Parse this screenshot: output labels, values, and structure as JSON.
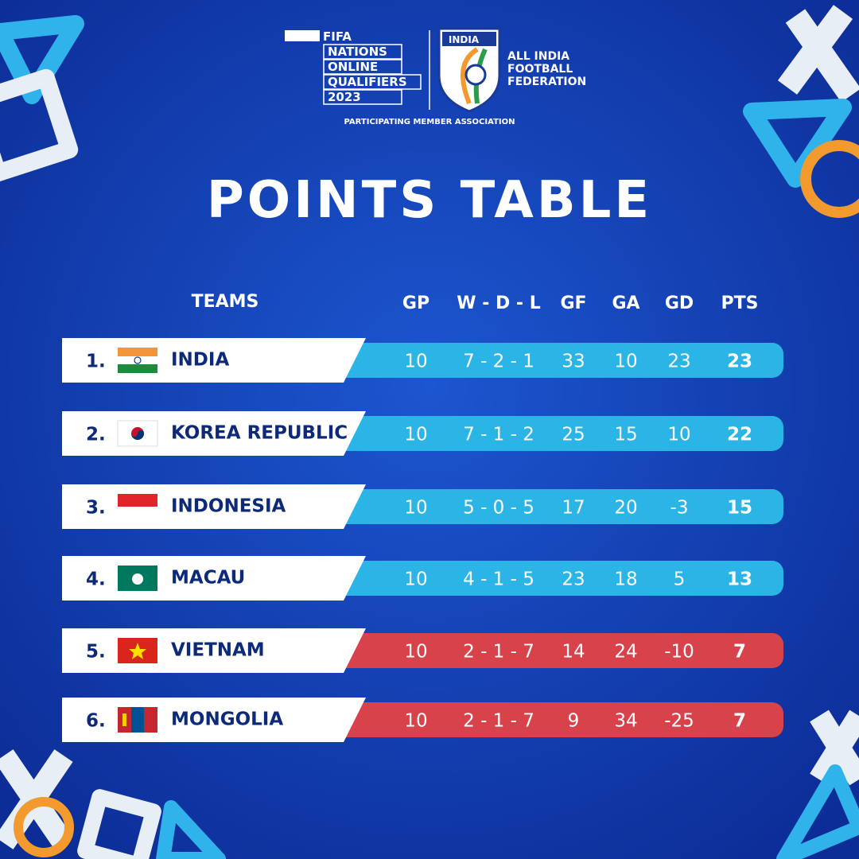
{
  "header": {
    "fifa": "FIFA",
    "event_lines": [
      "NATIONS",
      "ONLINE",
      "QUALIFIERS",
      "2023"
    ],
    "member": "PARTICIPATING MEMBER ASSOCIATION",
    "crest": "INDIA",
    "federation_lines": [
      "ALL INDIA",
      "FOOTBALL",
      "FEDERATION"
    ]
  },
  "title": "POINTS TABLE",
  "table": {
    "columns": [
      "TEAMS",
      "GP",
      "W - D - L",
      "GF",
      "GA",
      "GD",
      "PTS"
    ],
    "rows": [
      {
        "rank": "1.",
        "team": "INDIA",
        "gp": 10,
        "wdl": "7 - 2 - 1",
        "gf": 33,
        "ga": 10,
        "gd": 23,
        "pts": 23,
        "color": "#2bb5e6"
      },
      {
        "rank": "2.",
        "team": "KOREA REPUBLIC",
        "gp": 10,
        "wdl": "7 - 1 - 2",
        "gf": 25,
        "ga": 15,
        "gd": 10,
        "pts": 22,
        "color": "#2bb5e6"
      },
      {
        "rank": "3.",
        "team": "INDONESIA",
        "gp": 10,
        "wdl": "5 - 0 - 5",
        "gf": 17,
        "ga": 20,
        "gd": -3,
        "pts": 15,
        "color": "#2bb5e6"
      },
      {
        "rank": "4.",
        "team": "MACAU",
        "gp": 10,
        "wdl": "4 - 1 - 5",
        "gf": 23,
        "ga": 18,
        "gd": 5,
        "pts": 13,
        "color": "#2bb5e6"
      },
      {
        "rank": "5.",
        "team": "VIETNAM",
        "gp": 10,
        "wdl": "2 - 1 - 7",
        "gf": 14,
        "ga": 24,
        "gd": -10,
        "pts": 7,
        "color": "#d8434b"
      },
      {
        "rank": "6.",
        "team": "MONGOLIA",
        "gp": 10,
        "wdl": "2 - 1 - 7",
        "gf": 9,
        "ga": 34,
        "gd": -25,
        "pts": 7,
        "color": "#d8434b"
      }
    ]
  }
}
